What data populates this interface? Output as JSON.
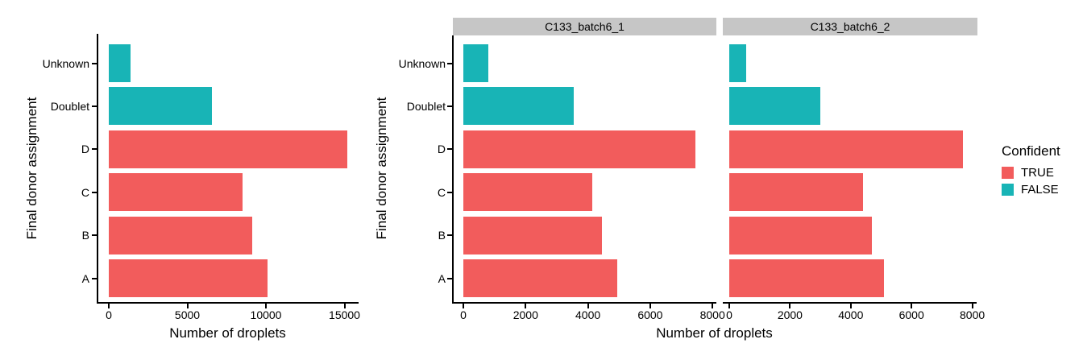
{
  "figure": {
    "background": "#FFFFFF"
  },
  "colors": {
    "confident_true": "#F25C5C",
    "confident_false": "#18B4B6",
    "strip_bg": "#C6C6C6",
    "axis_line": "#000000",
    "text": "#000000"
  },
  "legend": {
    "title": "Confident",
    "position": "right",
    "entries": [
      {
        "label": "TRUE",
        "color": "#F25C5C"
      },
      {
        "label": "FALSE",
        "color": "#18B4B6"
      }
    ]
  },
  "chart_data": [
    {
      "type": "bar",
      "orientation": "horizontal",
      "title": "",
      "xlabel": "Number of droplets",
      "ylabel": "Final donor assignment",
      "categories": [
        "Unknown",
        "Doublet",
        "D",
        "C",
        "B",
        "A"
      ],
      "values": [
        1370,
        6550,
        15200,
        8500,
        9150,
        10100
      ],
      "groups": [
        "FALSE",
        "FALSE",
        "TRUE",
        "TRUE",
        "TRUE",
        "TRUE"
      ],
      "xticks": [
        0,
        5000,
        10000,
        15000
      ],
      "xlim": [
        0,
        15900
      ],
      "grid": false,
      "legend_position": "none",
      "theme": "classic-black-axis-lines"
    },
    {
      "type": "bar",
      "orientation": "horizontal",
      "title": "",
      "xlabel": "Number of droplets",
      "ylabel": "Final donor assignment",
      "categories": [
        "Unknown",
        "Doublet",
        "D",
        "C",
        "B",
        "A"
      ],
      "groups": [
        "FALSE",
        "FALSE",
        "TRUE",
        "TRUE",
        "TRUE",
        "TRUE"
      ],
      "facets": [
        {
          "label": "C133_batch6_1",
          "values": [
            800,
            3550,
            7450,
            4150,
            4450,
            4950
          ]
        },
        {
          "label": "C133_batch6_2",
          "values": [
            550,
            3000,
            7700,
            4400,
            4700,
            5100
          ]
        }
      ],
      "xticks": [
        0,
        2000,
        4000,
        6000,
        8000
      ],
      "xlim": [
        0,
        8150
      ],
      "grid": false,
      "legend_position": "right",
      "theme": "classic-black-axis-lines"
    }
  ]
}
